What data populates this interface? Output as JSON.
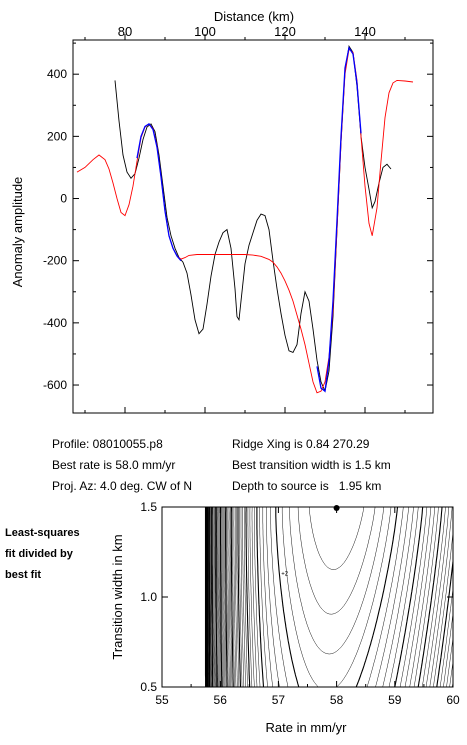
{
  "chart_data": [
    {
      "type": "line",
      "xlabel": "Distance (km)",
      "ylabel": "Anomaly amplitude",
      "xlim": [
        67,
        157
      ],
      "ylim": [
        -690,
        510
      ],
      "x_ticks": [
        80,
        100,
        120,
        140
      ],
      "y_ticks": [
        400,
        200,
        0,
        -200,
        -400,
        -600
      ],
      "series": [
        {
          "color": "#000000",
          "points": [
            [
              77.5,
              380
            ],
            [
              78.5,
              250
            ],
            [
              79.5,
              140
            ],
            [
              80.5,
              85
            ],
            [
              81.5,
              65
            ],
            [
              82.5,
              80
            ],
            [
              83.5,
              130
            ],
            [
              84.5,
              190
            ],
            [
              85.5,
              230
            ],
            [
              86.5,
              240
            ],
            [
              87.5,
              215
            ],
            [
              88.5,
              140
            ],
            [
              89.5,
              40
            ],
            [
              90.5,
              -60
            ],
            [
              91.5,
              -120
            ],
            [
              92.5,
              -160
            ],
            [
              93.5,
              -190
            ],
            [
              94.5,
              -205
            ],
            [
              95.5,
              -240
            ],
            [
              96.5,
              -310
            ],
            [
              97.5,
              -390
            ],
            [
              98.5,
              -435
            ],
            [
              99.5,
              -420
            ],
            [
              100.5,
              -340
            ],
            [
              101.5,
              -250
            ],
            [
              102.5,
              -180
            ],
            [
              103.5,
              -140
            ],
            [
              104.5,
              -110
            ],
            [
              105.5,
              -100
            ],
            [
              106.5,
              -160
            ],
            [
              107.5,
              -290
            ],
            [
              108,
              -380
            ],
            [
              108.5,
              -390
            ],
            [
              109,
              -330
            ],
            [
              110,
              -210
            ],
            [
              111,
              -150
            ],
            [
              112,
              -110
            ],
            [
              113,
              -70
            ],
            [
              114,
              -50
            ],
            [
              115,
              -55
            ],
            [
              116,
              -100
            ],
            [
              117,
              -200
            ],
            [
              118,
              -290
            ],
            [
              119,
              -370
            ],
            [
              120,
              -440
            ],
            [
              121,
              -490
            ],
            [
              122,
              -495
            ],
            [
              123,
              -470
            ],
            [
              124,
              -370
            ],
            [
              125,
              -300
            ],
            [
              126,
              -330
            ],
            [
              127,
              -420
            ],
            [
              128,
              -520
            ],
            [
              129,
              -590
            ],
            [
              130,
              -620
            ],
            [
              131,
              -555
            ],
            [
              132,
              -380
            ],
            [
              133,
              -100
            ],
            [
              134,
              180
            ],
            [
              135,
              410
            ],
            [
              136,
              490
            ],
            [
              137,
              470
            ],
            [
              138,
              360
            ],
            [
              139,
              200
            ],
            [
              140,
              100
            ],
            [
              141,
              30
            ],
            [
              141.8,
              -30
            ],
            [
              142.5,
              -10
            ],
            [
              143.5,
              50
            ],
            [
              144.5,
              100
            ],
            [
              145.5,
              110
            ],
            [
              146.5,
              95
            ]
          ]
        },
        {
          "color": "#ff0000",
          "points": [
            [
              68,
              85
            ],
            [
              70,
              100
            ],
            [
              72,
              125
            ],
            [
              73.5,
              140
            ],
            [
              75,
              125
            ],
            [
              76,
              95
            ],
            [
              77,
              50
            ],
            [
              78,
              0
            ],
            [
              79,
              -45
            ],
            [
              80,
              -55
            ],
            [
              81,
              -20
            ],
            [
              82,
              40
            ],
            [
              83,
              120
            ],
            [
              84,
              195
            ],
            [
              85,
              230
            ],
            [
              86,
              240
            ],
            [
              87,
              225
            ],
            [
              88,
              170
            ],
            [
              89,
              70
            ],
            [
              90,
              -40
            ],
            [
              91,
              -120
            ],
            [
              92,
              -160
            ],
            [
              93,
              -185
            ],
            [
              94,
              -195
            ],
            [
              95,
              -190
            ],
            [
              96,
              -183
            ],
            [
              98,
              -180
            ],
            [
              104,
              -180
            ],
            [
              110,
              -180
            ],
            [
              112,
              -182
            ],
            [
              114,
              -186
            ],
            [
              116,
              -196
            ],
            [
              117,
              -205
            ],
            [
              118,
              -220
            ],
            [
              119,
              -240
            ],
            [
              120,
              -265
            ],
            [
              121,
              -295
            ],
            [
              122,
              -330
            ],
            [
              123,
              -375
            ],
            [
              124,
              -420
            ],
            [
              125,
              -470
            ],
            [
              126,
              -530
            ],
            [
              127,
              -590
            ],
            [
              128,
              -625
            ],
            [
              129,
              -620
            ],
            [
              130,
              -590
            ],
            [
              131,
              -510
            ],
            [
              132,
              -360
            ],
            [
              133,
              -100
            ],
            [
              134,
              180
            ],
            [
              135,
              400
            ],
            [
              136,
              480
            ],
            [
              137,
              470
            ],
            [
              138,
              380
            ],
            [
              139,
              200
            ],
            [
              140,
              40
            ],
            [
              141,
              -80
            ],
            [
              141.8,
              -120
            ],
            [
              143,
              -30
            ],
            [
              144,
              120
            ],
            [
              145,
              260
            ],
            [
              146,
              340
            ],
            [
              147,
              372
            ],
            [
              148,
              380
            ],
            [
              150,
              378
            ],
            [
              152,
              375
            ]
          ]
        },
        {
          "color": "#0000ff",
          "points": [
            [
              83,
              130
            ],
            [
              84,
              200
            ],
            [
              85,
              232
            ],
            [
              86,
              240
            ],
            [
              87,
              222
            ],
            [
              88,
              165
            ],
            [
              89,
              70
            ],
            [
              90,
              -40
            ],
            [
              91,
              -120
            ],
            [
              92,
              -160
            ],
            [
              93,
              -185
            ],
            [
              94,
              -200
            ],
            [
              128,
              -540
            ],
            [
              129,
              -610
            ],
            [
              130,
              -620
            ],
            [
              131,
              -520
            ],
            [
              132,
              -330
            ],
            [
              133,
              -70
            ],
            [
              134,
              200
            ],
            [
              135,
              420
            ],
            [
              136,
              485
            ],
            [
              137,
              465
            ],
            [
              138,
              370
            ],
            [
              139,
              210
            ]
          ]
        }
      ]
    },
    {
      "type": "heatmap",
      "xlabel": "Rate in mm/yr",
      "ylabel": "Transition width in km",
      "xlim": [
        55,
        60
      ],
      "ylim": [
        0.5,
        1.5
      ],
      "x_ticks": [
        55,
        56,
        57,
        58,
        59,
        60
      ],
      "y_ticks": [
        0.5,
        1.0,
        1.5
      ],
      "best_fit_point": [
        58.0,
        1.5
      ],
      "contour_label": "+2",
      "contour_label_position": [
        57.05,
        1.12
      ]
    }
  ],
  "info": {
    "profile": "Profile: 08010055.p8",
    "best_rate": "Best rate is 58.0 mm/yr",
    "proj_az": "Proj. Az: 4.0 deg. CW of N",
    "ridge_xing": "Ridge Xing is 0.84 270.29",
    "transition": "Best transition width is 1.5 km",
    "depth": "Depth to source is   1.95 km"
  },
  "side_note": [
    "Least-squares",
    "fit divided by",
    "best fit"
  ]
}
